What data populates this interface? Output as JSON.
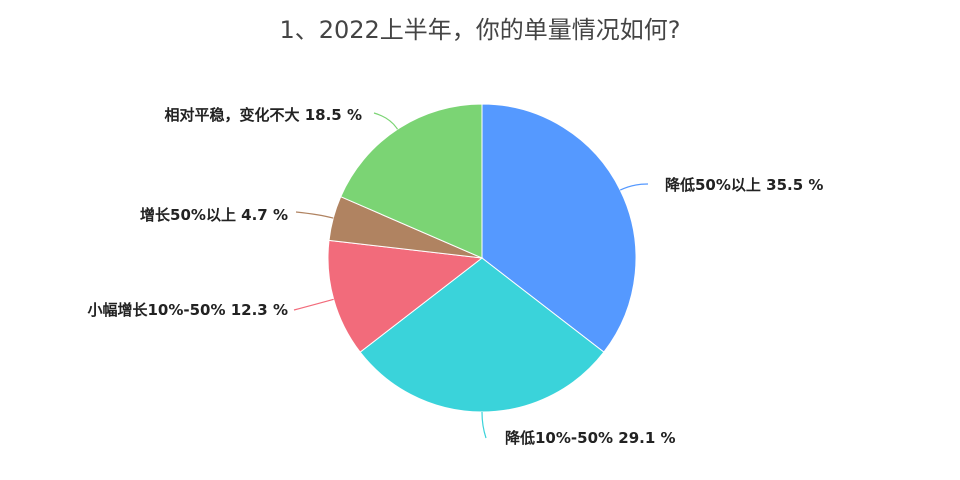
{
  "chart_data": {
    "type": "pie",
    "title": "1、2022上半年，你的单量情况如何?",
    "slices": [
      {
        "label": "降低50%以上",
        "value": 35.5,
        "color": "#5599ff",
        "display": "降低50%以上 35.5 %"
      },
      {
        "label": "降低10%-50%",
        "value": 29.1,
        "color": "#3ad3da",
        "display": "降低10%-50% 29.1 %"
      },
      {
        "label": "小幅增长10%-50%",
        "value": 12.3,
        "color": "#f26b7b",
        "display": "小幅增长10%-50% 12.3 %"
      },
      {
        "label": "增长50%以上",
        "value": 4.7,
        "color": "#b08361",
        "display": "增长50%以上 4.7 %"
      },
      {
        "label": "相对平稳，变化不大",
        "value": 18.5,
        "color": "#7bd474",
        "display": "相对平稳，变化不大 18.5 %"
      }
    ]
  }
}
